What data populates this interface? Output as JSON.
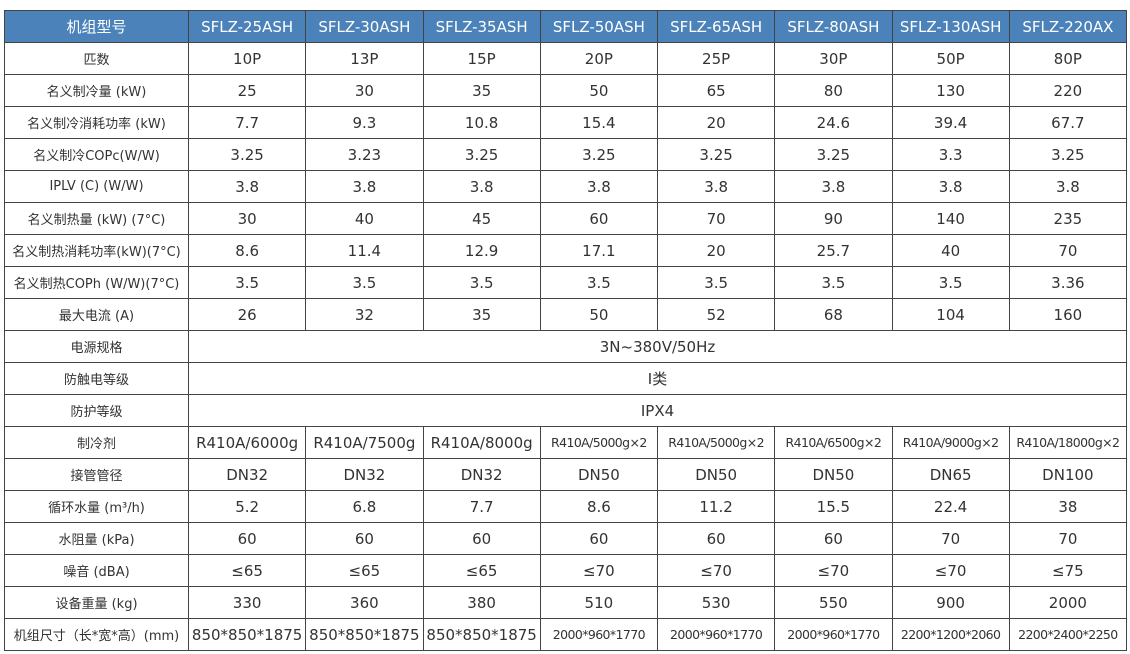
{
  "table": {
    "header": [
      "机组型号",
      "SFLZ-25ASH",
      "SFLZ-30ASH",
      "SFLZ-35ASH",
      "SFLZ-50ASH",
      "SFLZ-65ASH",
      "SFLZ-80ASH",
      "SFLZ-130ASH",
      "SFLZ-220AX"
    ],
    "rows": [
      [
        "匹数",
        "10P",
        "13P",
        "15P",
        "20P",
        "25P",
        "30P",
        "50P",
        "80P"
      ],
      [
        "名义制冷量 (kW)",
        "25",
        "30",
        "35",
        "50",
        "65",
        "80",
        "130",
        "220"
      ],
      [
        "名义制冷消耗功率 (kW)",
        "7.7",
        "9.3",
        "10.8",
        "15.4",
        "20",
        "24.6",
        "39.4",
        "67.7"
      ],
      [
        "名义制冷COPc(W/W)",
        "3.25",
        "3.23",
        "3.25",
        "3.25",
        "3.25",
        "3.25",
        "3.3",
        "3.25"
      ],
      [
        "IPLV (C) (W/W)",
        "3.8",
        "3.8",
        "3.8",
        "3.8",
        "3.8",
        "3.8",
        "3.8",
        "3.8"
      ],
      [
        "名义制热量 (kW) (7°C)",
        "30",
        "40",
        "45",
        "60",
        "70",
        "90",
        "140",
        "235"
      ],
      [
        "名义制热消耗功率(kW)(7°C)",
        "8.6",
        "11.4",
        "12.9",
        "17.1",
        "20",
        "25.7",
        "40",
        "70"
      ],
      [
        "名义制热COPh (W/W)(7°C)",
        "3.5",
        "3.5",
        "3.5",
        "3.5",
        "3.5",
        "3.5",
        "3.5",
        "3.36"
      ],
      [
        "最大电流 (A)",
        "26",
        "32",
        "35",
        "50",
        "52",
        "68",
        "104",
        "160"
      ],
      [
        "电源规格",
        "3N~380V/50Hz"
      ],
      [
        "防触电等级",
        "I类"
      ],
      [
        "防护等级",
        "IPX4"
      ],
      [
        "制冷剂",
        "R410A/6000g",
        "R410A/7500g",
        "R410A/8000g",
        "R410A/5000g×2",
        "R410A/5000g×2",
        "R410A/6500g×2",
        "R410A/9000g×2",
        "R410A/18000g×2"
      ],
      [
        "接管管径",
        "DN32",
        "DN32",
        "DN32",
        "DN50",
        "DN50",
        "DN50",
        "DN65",
        "DN100"
      ],
      [
        "循环水量 (m³/h)",
        "5.2",
        "6.8",
        "7.7",
        "8.6",
        "11.2",
        "15.5",
        "22.4",
        "38"
      ],
      [
        "水阻量 (kPa)",
        "60",
        "60",
        "60",
        "60",
        "60",
        "60",
        "70",
        "70"
      ],
      [
        "噪音 (dBA)",
        "≤65",
        "≤65",
        "≤65",
        "≤70",
        "≤70",
        "≤70",
        "≤70",
        "≤75"
      ],
      [
        "设备重量 (kg)",
        "330",
        "360",
        "380",
        "510",
        "530",
        "550",
        "900",
        "2000"
      ],
      [
        "机组尺寸（长*宽*高）(mm)",
        "850*850*1875",
        "850*850*1875",
        "850*850*1875",
        "2000*960*1770",
        "2000*960*1770",
        "2000*960*1770",
        "2200*1200*2060",
        "2200*2400*2250"
      ]
    ]
  }
}
